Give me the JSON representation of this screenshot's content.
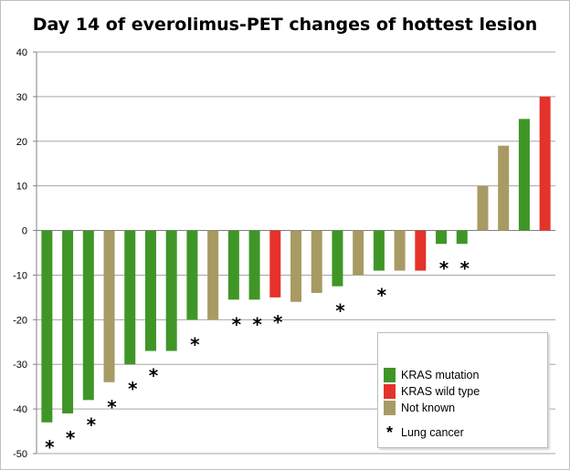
{
  "chart_data": {
    "type": "bar",
    "title": "Day 14 of everolimus-PET changes of hottest lesion",
    "ylim": [
      -50,
      40
    ],
    "yticks": [
      40,
      30,
      20,
      10,
      0,
      -10,
      -20,
      -30,
      -40,
      -50
    ],
    "grid": true,
    "legend_position": "bottom-right",
    "colors": {
      "mutation": "#3f9627",
      "wild": "#e5322a",
      "unknown": "#a89a63"
    },
    "values": [
      -43,
      -41,
      -38,
      -34,
      -30,
      -27,
      -27,
      -20,
      -20,
      -15.5,
      -15.5,
      -15,
      -16,
      -14,
      -12.5,
      -10,
      -9,
      -9,
      -9,
      -3,
      -3,
      10,
      19,
      25,
      30
    ],
    "groups": [
      "mutation",
      "mutation",
      "mutation",
      "unknown",
      "mutation",
      "mutation",
      "mutation",
      "mutation",
      "unknown",
      "mutation",
      "mutation",
      "wild",
      "unknown",
      "unknown",
      "mutation",
      "unknown",
      "mutation",
      "unknown",
      "wild",
      "mutation",
      "mutation",
      "unknown",
      "unknown",
      "mutation",
      "wild"
    ],
    "lung_cancer": [
      true,
      true,
      true,
      true,
      true,
      true,
      false,
      true,
      false,
      true,
      true,
      true,
      false,
      false,
      true,
      false,
      true,
      false,
      false,
      true,
      true,
      false,
      false,
      false,
      false
    ],
    "legend": [
      {
        "key": "mutation",
        "label": "KRAS mutation"
      },
      {
        "key": "wild",
        "label": "KRAS wild type"
      },
      {
        "key": "unknown",
        "label": "Not known"
      }
    ],
    "marker_symbol": "*",
    "marker_label": "Lung cancer"
  }
}
